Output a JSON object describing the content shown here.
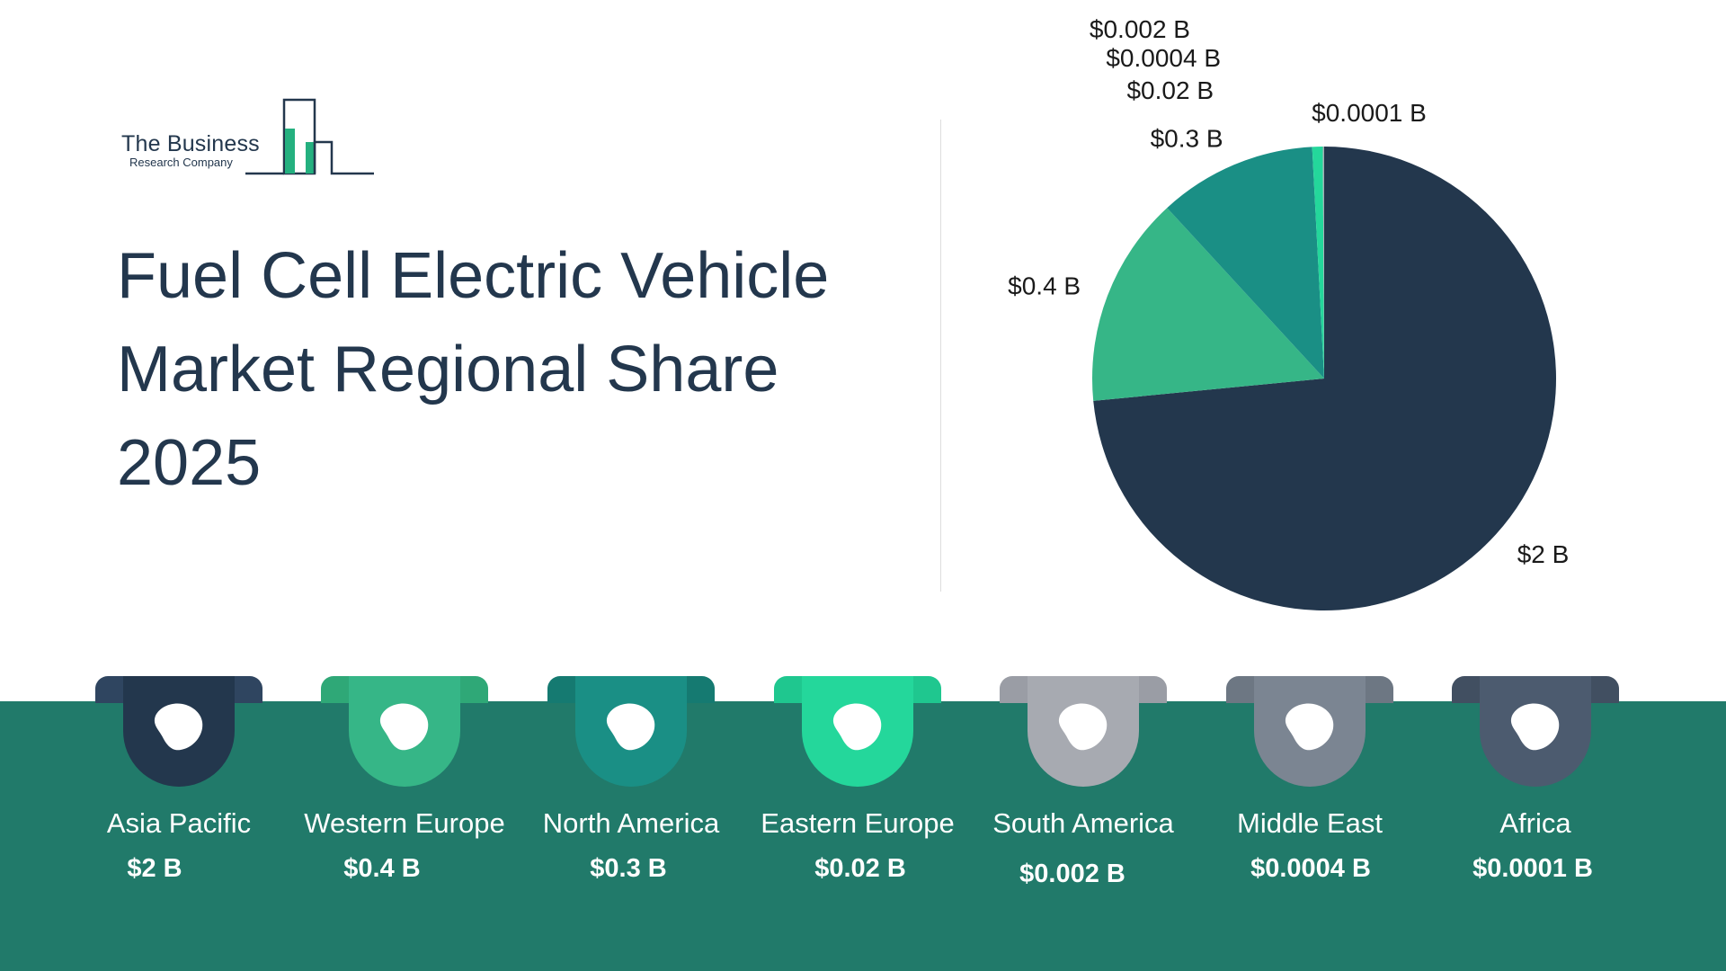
{
  "logo": {
    "line1": "The Business",
    "line2": "Research Company"
  },
  "title_lines": [
    "Fuel Cell Electric Vehicle",
    "Market Regional Share",
    "2025"
  ],
  "colors": {
    "band": "#217a6a",
    "asia_pacific": "#23374d",
    "western_europe": "#36b687",
    "north_america": "#1a8f85",
    "eastern_europe": "#24d79b",
    "south_america": "#a7aab1",
    "middle_east": "#7b8592",
    "africa": "#4c5b6f"
  },
  "chart_data": {
    "type": "pie",
    "title": "",
    "unit": "$ billion",
    "slices": [
      {
        "label": "Asia Pacific",
        "value": 2,
        "display": "$2 B",
        "color": "#23374d"
      },
      {
        "label": "Western Europe",
        "value": 0.4,
        "display": "$0.4 B",
        "color": "#36b687"
      },
      {
        "label": "North America",
        "value": 0.3,
        "display": "$0.3 B",
        "color": "#1a8f85"
      },
      {
        "label": "Eastern Europe",
        "value": 0.02,
        "display": "$0.02 B",
        "color": "#24d79b"
      },
      {
        "label": "South America",
        "value": 0.002,
        "display": "$0.002 B",
        "color": "#a7aab1"
      },
      {
        "label": "Middle East",
        "value": 0.0004,
        "display": "$0.0004 B",
        "color": "#7b8592"
      },
      {
        "label": "Africa",
        "value": 0.0001,
        "display": "$0.0001 B",
        "color": "#4c5b6f"
      }
    ]
  },
  "regions": [
    {
      "name": "Asia Pacific",
      "value": "$2 B",
      "icon": "asia-map-icon"
    },
    {
      "name": "Western Europe",
      "value": "$0.4 B",
      "icon": "western-europe-map-icon"
    },
    {
      "name": "North America",
      "value": "$0.3 B",
      "icon": "north-america-map-icon"
    },
    {
      "name": "Eastern Europe",
      "value": "$0.02 B",
      "icon": "eastern-europe-map-icon"
    },
    {
      "name": "South America",
      "value": "$0.002 B",
      "icon": "south-america-map-icon"
    },
    {
      "name": "Middle East",
      "value": "$0.0004 B",
      "icon": "middle-east-map-icon"
    },
    {
      "name": "Africa",
      "value": "$0.0001 B",
      "icon": "africa-map-icon"
    }
  ]
}
